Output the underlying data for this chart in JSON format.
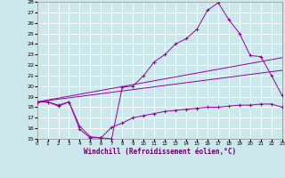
{
  "xlabel": "Windchill (Refroidissement éolien,°C)",
  "background_color": "#cce8ec",
  "line_color": "#990099",
  "grid_color": "#ffffff",
  "ylim": [
    15,
    28
  ],
  "xlim": [
    0,
    23
  ],
  "yticks": [
    15,
    16,
    17,
    18,
    19,
    20,
    21,
    22,
    23,
    24,
    25,
    26,
    27,
    28
  ],
  "xticks": [
    0,
    1,
    2,
    3,
    4,
    5,
    6,
    7,
    8,
    9,
    10,
    11,
    12,
    13,
    14,
    15,
    16,
    17,
    18,
    19,
    20,
    21,
    22,
    23
  ],
  "line1_x": [
    0,
    1,
    2,
    3,
    4,
    5,
    6,
    7,
    8,
    9,
    10,
    11,
    12,
    13,
    14,
    15,
    16,
    17,
    18,
    19,
    20,
    21,
    22,
    23
  ],
  "line1_y": [
    18.5,
    18.5,
    18.2,
    18.5,
    16.2,
    15.2,
    15.1,
    15.0,
    19.9,
    20.0,
    21.0,
    22.3,
    23.0,
    24.0,
    24.5,
    25.4,
    27.2,
    27.9,
    26.3,
    25.0,
    22.9,
    22.8,
    21.0,
    19.1
  ],
  "line2_x": [
    0,
    23
  ],
  "line2_y": [
    18.5,
    22.7
  ],
  "line3_x": [
    0,
    23
  ],
  "line3_y": [
    18.5,
    21.5
  ],
  "line4_x": [
    0,
    1,
    2,
    3,
    4,
    5,
    6,
    7,
    8,
    9,
    10,
    11,
    12,
    13,
    14,
    15,
    16,
    17,
    18,
    19,
    20,
    21,
    22,
    23
  ],
  "line4_y": [
    18.5,
    18.5,
    18.1,
    18.5,
    15.9,
    15.1,
    15.1,
    16.1,
    16.5,
    17.0,
    17.2,
    17.4,
    17.6,
    17.7,
    17.8,
    17.9,
    18.0,
    18.0,
    18.1,
    18.2,
    18.2,
    18.3,
    18.3,
    18.0
  ]
}
